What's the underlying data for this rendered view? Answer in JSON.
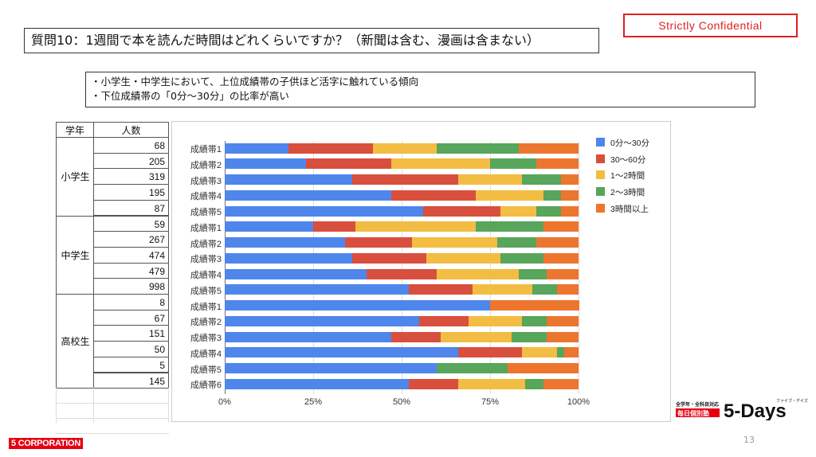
{
  "slide": {
    "title": "質問10：1週間で本を読んだ時間はどれくらいですか？（新聞は含む、漫画は含まない）",
    "confidential": "Strictly Confidential",
    "notes": [
      "・小学生・中学生において、上位成績帯の子供ほど活字に触れている傾向",
      "・下位成績帯の「0分～30分」の比率が高い"
    ],
    "page_number": "13",
    "corp_logo": "5 CORPORATION",
    "brand_logo": {
      "tagline": "全学年・全科目対応",
      "name": "毎日個別塾",
      "main": "5-Days",
      "ruby": "ファイブ・デイズ"
    }
  },
  "table": {
    "headers": [
      "学年",
      "人数"
    ],
    "groups": [
      {
        "grade": "小学生",
        "counts": [
          "68",
          "205",
          "319",
          "195",
          "87"
        ]
      },
      {
        "grade": "中学生",
        "counts": [
          "59",
          "267",
          "474",
          "479",
          "998"
        ]
      },
      {
        "grade": "高校生",
        "counts": [
          "8",
          "67",
          "151",
          "50",
          "5",
          "145"
        ]
      }
    ]
  },
  "chart_data": {
    "type": "bar",
    "orientation": "horizontal",
    "stacked": "percent",
    "categories": [
      "成績帯1",
      "成績帯2",
      "成績帯3",
      "成績帯4",
      "成績帯5",
      "成績帯1",
      "成績帯2",
      "成績帯3",
      "成績帯4",
      "成績帯5",
      "成績帯1",
      "成績帯2",
      "成績帯3",
      "成績帯4",
      "成績帯5",
      "成績帯6"
    ],
    "series": [
      {
        "name": "0分～30分",
        "color": "#4f86ec",
        "values": [
          18,
          23,
          36,
          47,
          56,
          25,
          34,
          36,
          40,
          52,
          75,
          55,
          47,
          66,
          60,
          52
        ]
      },
      {
        "name": "30～60分",
        "color": "#d94f3d",
        "values": [
          24,
          24,
          30,
          24,
          22,
          12,
          19,
          21,
          20,
          18,
          0,
          14,
          14,
          18,
          0,
          14
        ]
      },
      {
        "name": "1～2時間",
        "color": "#f2bd42",
        "values": [
          18,
          28,
          18,
          19,
          10,
          34,
          24,
          21,
          23,
          17,
          0,
          15,
          20,
          10,
          0,
          19
        ]
      },
      {
        "name": "2～3時間",
        "color": "#58a55c",
        "values": [
          23,
          13,
          11,
          5,
          7,
          19,
          11,
          12,
          8,
          7,
          0,
          7,
          10,
          2,
          20,
          5
        ]
      },
      {
        "name": "3時間以上",
        "color": "#ed762f",
        "values": [
          17,
          12,
          5,
          5,
          5,
          10,
          12,
          10,
          9,
          6,
          25,
          9,
          9,
          4,
          20,
          10
        ]
      }
    ],
    "xticks": [
      "0%",
      "25%",
      "50%",
      "75%",
      "100%"
    ],
    "xlim": [
      0,
      100
    ],
    "grid": true,
    "legend": "right"
  }
}
